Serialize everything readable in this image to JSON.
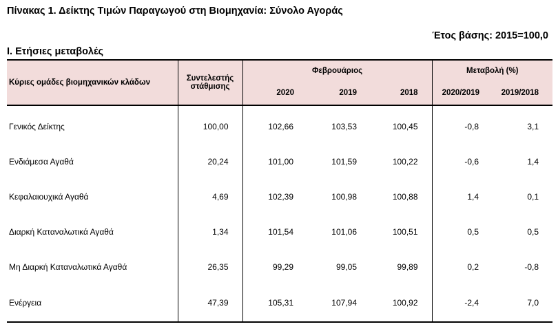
{
  "header": {
    "title": "Πίνακας 1. Δείκτης Τιμών Παραγωγού στη Βιομηχανία: Σύνολο Αγοράς",
    "base_year": "Έτος βάσης: 2015=100,0",
    "section": "Ι. Ετήσιες μεταβολές"
  },
  "table": {
    "col_group_label": "Κύριες ομάδες βιομηχανικών κλάδων",
    "col_weight": "Συντελεστής στάθμισης",
    "col_month": "Φεβρουάριος",
    "col_change": "Μεταβολή (%)",
    "years": [
      "2020",
      "2019",
      "2018"
    ],
    "changes": [
      "2020/2019",
      "2019/2018"
    ],
    "rows": [
      {
        "name": "Γενικός Δείκτης",
        "weight": "100,00",
        "y2020": "102,66",
        "y2019": "103,53",
        "y2018": "100,45",
        "c1": "-0,8",
        "c2": "3,1"
      },
      {
        "name": "Ενδιάμεσα Αγαθά",
        "weight": "20,24",
        "y2020": "101,00",
        "y2019": "101,59",
        "y2018": "100,22",
        "c1": "-0,6",
        "c2": "1,4"
      },
      {
        "name": "Κεφαλαιουχικά Αγαθά",
        "weight": "4,69",
        "y2020": "102,39",
        "y2019": "100,98",
        "y2018": "100,88",
        "c1": "1,4",
        "c2": "0,1"
      },
      {
        "name": "Διαρκή Καταναλωτικά Αγαθά",
        "weight": "1,34",
        "y2020": "101,54",
        "y2019": "101,06",
        "y2018": "100,51",
        "c1": "0,5",
        "c2": "0,5"
      },
      {
        "name": "Μη Διαρκή Καταναλωτικά Αγαθά",
        "weight": "26,35",
        "y2020": "99,29",
        "y2019": "99,05",
        "y2018": "99,89",
        "c1": "0,2",
        "c2": "-0,8"
      },
      {
        "name": "Ενέργεια",
        "weight": "47,39",
        "y2020": "105,31",
        "y2019": "107,94",
        "y2018": "100,92",
        "c1": "-2,4",
        "c2": "7,0"
      }
    ]
  }
}
